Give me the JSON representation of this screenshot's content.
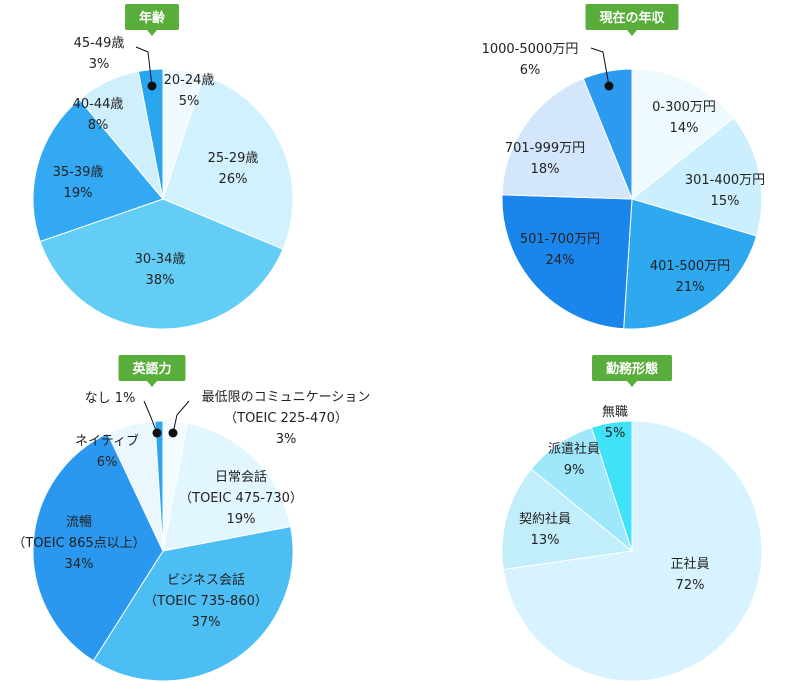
{
  "colors": {
    "tag_green": "#59ad3a",
    "outline": "#ffffff",
    "dot": "#111111",
    "text": "#222222"
  },
  "chart_data": [
    {
      "type": "pie",
      "title": "年齢",
      "slices": [
        {
          "label": "20-24歳",
          "value": 5,
          "value_label": "5%",
          "color": "#eefaff"
        },
        {
          "label": "25-29歳",
          "value": 26,
          "value_label": "26%",
          "color": "#d2f1ff"
        },
        {
          "label": "30-34歳",
          "value": 38,
          "value_label": "38%",
          "color": "#63cdf5"
        },
        {
          "label": "35-39歳",
          "value": 19,
          "value_label": "19%",
          "color": "#32a9f2"
        },
        {
          "label": "40-44歳",
          "value": 8,
          "value_label": "8%",
          "color": "#cfeffc"
        },
        {
          "label": "45-49歳",
          "value": 3,
          "value_label": "3%",
          "color": "#2aa6ee"
        }
      ]
    },
    {
      "type": "pie",
      "title": "現在の年収",
      "slices": [
        {
          "label": "0-300万円",
          "value": 14,
          "value_label": "14%",
          "color": "#eefaff"
        },
        {
          "label": "301-400万円",
          "value": 15,
          "value_label": "15%",
          "color": "#ccefff"
        },
        {
          "label": "401-500万円",
          "value": 21,
          "value_label": "21%",
          "color": "#2ea8ef"
        },
        {
          "label": "501-700万円",
          "value": 24,
          "value_label": "24%",
          "color": "#1a86ec"
        },
        {
          "label": "701-999万円",
          "value": 18,
          "value_label": "18%",
          "color": "#d4e6fb"
        },
        {
          "label": "1000-5000万円",
          "value": 6,
          "value_label": "6%",
          "color": "#2c9aee"
        }
      ]
    },
    {
      "type": "pie",
      "title": "英語力",
      "slices": [
        {
          "label": "最低限のコミュニケーション",
          "sublabel": "（TOEIC 225-470）",
          "value": 3,
          "value_label": "3%",
          "color": "#f3fbff"
        },
        {
          "label": "日常会話",
          "sublabel": "（TOEIC 475-730）",
          "value": 19,
          "value_label": "19%",
          "color": "#e2f6ff"
        },
        {
          "label": "ビジネス会話",
          "sublabel": "（TOEIC 735-860）",
          "value": 37,
          "value_label": "37%",
          "color": "#4cbef3"
        },
        {
          "label": "流暢",
          "sublabel": "（TOEIC 865点以上）",
          "value": 34,
          "value_label": "34%",
          "color": "#2a98ee"
        },
        {
          "label": "ネイティブ",
          "value": 6,
          "value_label": "6%",
          "color": "#eaf8fd"
        },
        {
          "label": "なし",
          "value": 1,
          "value_label": "1%",
          "color": "#2aa6ee"
        }
      ]
    },
    {
      "type": "pie",
      "title": "勤務形態",
      "slices": [
        {
          "label": "正社員",
          "value": 72,
          "value_label": "72%",
          "color": "#d6f3ff"
        },
        {
          "label": "契約社員",
          "value": 13,
          "value_label": "13%",
          "color": "#c2edfb"
        },
        {
          "label": "派遣社員",
          "value": 9,
          "value_label": "9%",
          "color": "#9fe7fa"
        },
        {
          "label": "無職",
          "value": 5,
          "value_label": "5%",
          "color": "#3fe2f7"
        }
      ]
    }
  ]
}
